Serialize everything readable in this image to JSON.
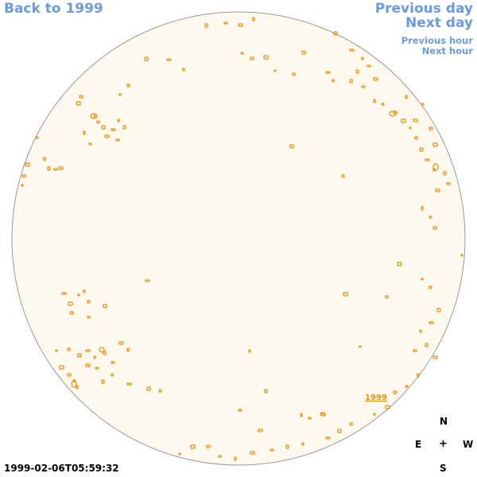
{
  "nav": {
    "back": "Back to 1999",
    "previous_day": "Previous day",
    "next_day": "Next day",
    "previous_hour": "Previous hour",
    "next_hour": "Next hour"
  },
  "disk": {
    "label": "1999",
    "fill_color": "#fef9ee",
    "outline_color": "#999999",
    "contour_color": "#e8900c"
  },
  "compass": {
    "north": "N",
    "east": "E",
    "center": "+",
    "west": "W",
    "south": "S"
  },
  "timestamp": "1999-02-06T05:59:32"
}
